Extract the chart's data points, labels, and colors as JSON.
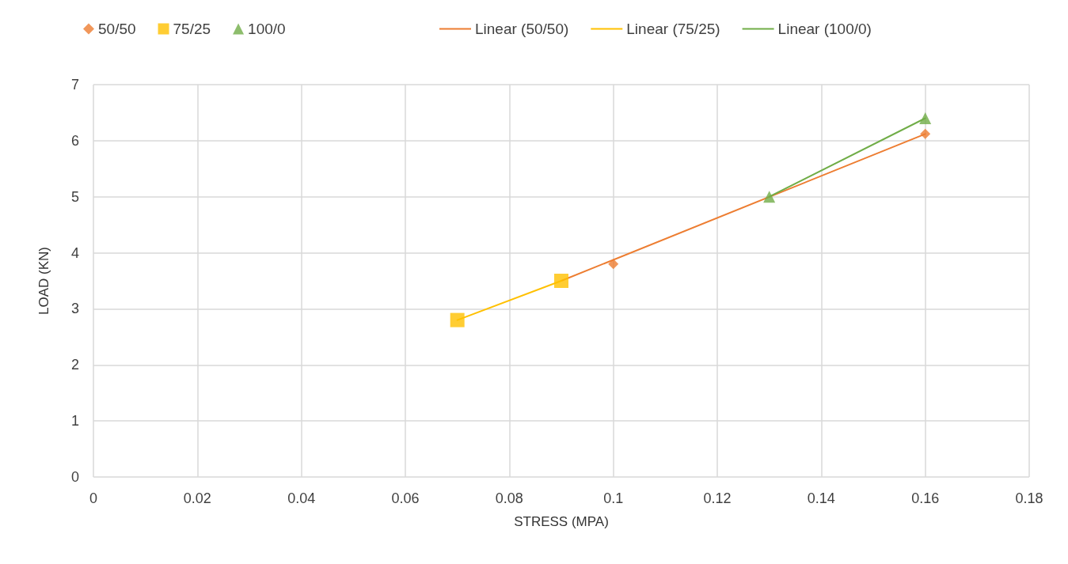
{
  "chart_data": {
    "type": "scatter",
    "xlabel": "STRESS (MPA)",
    "ylabel": "LOAD (KN)",
    "xlim": [
      0,
      0.18
    ],
    "xticks": [
      0,
      0.02,
      0.04,
      0.06,
      0.08,
      0.1,
      0.12,
      0.14,
      0.16,
      0.18
    ],
    "ylim": [
      0,
      7
    ],
    "yticks": [
      0,
      1,
      2,
      3,
      4,
      5,
      6,
      7
    ],
    "grid": true,
    "legend": "top",
    "series": [
      {
        "name": "50/50",
        "marker": "diamond",
        "color": "#ed7d31",
        "x": [
          0.1,
          0.16
        ],
        "values": [
          3.8,
          6.12
        ]
      },
      {
        "name": "75/25",
        "marker": "square",
        "color": "#ffc000",
        "x": [
          0.07,
          0.09
        ],
        "values": [
          2.8,
          3.5
        ]
      },
      {
        "name": "100/0",
        "marker": "triangle",
        "color": "#70ad47",
        "x": [
          0.13,
          0.16
        ],
        "values": [
          5.0,
          6.4
        ]
      },
      {
        "name": "Linear (50/50)",
        "type": "line",
        "line_style": "solid",
        "marker": "none",
        "color": "#ed7d31",
        "x": [
          0.09,
          0.16
        ],
        "values": [
          3.5,
          6.12
        ]
      },
      {
        "name": "Linear (75/25)",
        "type": "line",
        "line_style": "solid",
        "marker": "none",
        "color": "#ffc000",
        "x": [
          0.07,
          0.09
        ],
        "values": [
          2.8,
          3.5
        ]
      },
      {
        "name": "Linear (100/0)",
        "type": "line",
        "line_style": "solid",
        "marker": "none",
        "color": "#70ad47",
        "x": [
          0.13,
          0.16
        ],
        "values": [
          5.0,
          6.4
        ]
      }
    ]
  }
}
